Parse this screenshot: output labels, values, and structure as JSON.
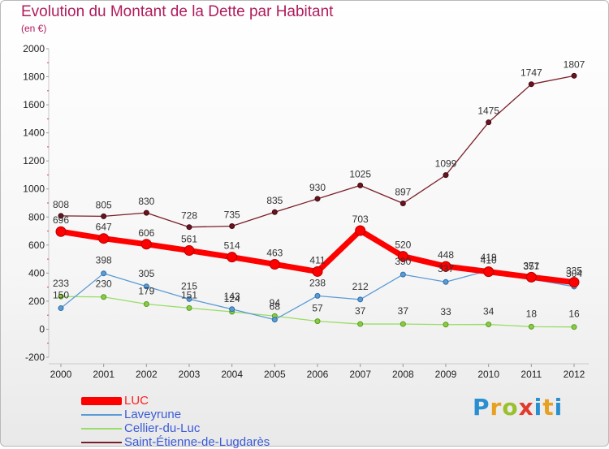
{
  "title": "Evolution du Montant de la Dette par Habitant",
  "subtitle": "(en €)",
  "chart_data": {
    "type": "line",
    "x": [
      "2000",
      "2001",
      "2002",
      "2003",
      "2004",
      "2005",
      "2006",
      "2007",
      "2008",
      "2009",
      "2010",
      "2011",
      "2012"
    ],
    "ylim": [
      -200,
      2000
    ],
    "yticks": [
      "-200",
      "0",
      "200",
      "400",
      "600",
      "800",
      "1000",
      "1200",
      "1400",
      "1600",
      "1800",
      "2000"
    ],
    "grid": false,
    "legend_position": "bottom-left",
    "series": [
      {
        "name": "LUC",
        "color": "#ff0000",
        "values": [
          696,
          647,
          606,
          561,
          514,
          463,
          411,
          703,
          520,
          448,
          410,
          371,
          335
        ],
        "labels": [
          "696",
          "647",
          "606",
          "561",
          "514",
          "463",
          "411",
          "703",
          "520",
          "448",
          "410",
          "371",
          "335"
        ]
      },
      {
        "name": "Laveyrune",
        "color": "#5b9bd5",
        "values": [
          150,
          398,
          305,
          215,
          143,
          68,
          238,
          212,
          390,
          337,
          419,
          357,
          304
        ],
        "labels": [
          "150",
          "398",
          "305",
          "215",
          "143",
          "68",
          "238",
          "212",
          "390",
          "337",
          "419",
          "357",
          "304"
        ]
      },
      {
        "name": "Cellier-du-Luc",
        "color": "#99dd66",
        "values": [
          233,
          230,
          179,
          151,
          124,
          94,
          57,
          37,
          37,
          33,
          34,
          18,
          16
        ],
        "labels": [
          "233",
          "230",
          "179",
          "151",
          "124",
          "94",
          "57",
          "37",
          "37",
          "33",
          "34",
          "18",
          "16"
        ]
      },
      {
        "name": "Saint-Étienne-de-Lugdarès",
        "color": "#7a1e2a",
        "values": [
          808,
          805,
          830,
          728,
          735,
          835,
          930,
          1025,
          897,
          1099,
          1475,
          1747,
          1807
        ],
        "labels": [
          "808",
          "805",
          "830",
          "728",
          "735",
          "835",
          "930",
          "1025",
          "897",
          "1099",
          "1475",
          "1747",
          "1807"
        ]
      }
    ]
  },
  "legend": {
    "items": [
      "LUC",
      "Laveyrune",
      "Cellier-du-Luc",
      "Saint-Étienne-de-Lugdarès"
    ],
    "colors": [
      "#ff0000",
      "#5b9bd5",
      "#99dd66",
      "#7a1e2a"
    ]
  },
  "logo": {
    "text": "Proxiti",
    "letters": [
      "P",
      "r",
      "o",
      "x",
      "i",
      "t",
      "i"
    ]
  }
}
